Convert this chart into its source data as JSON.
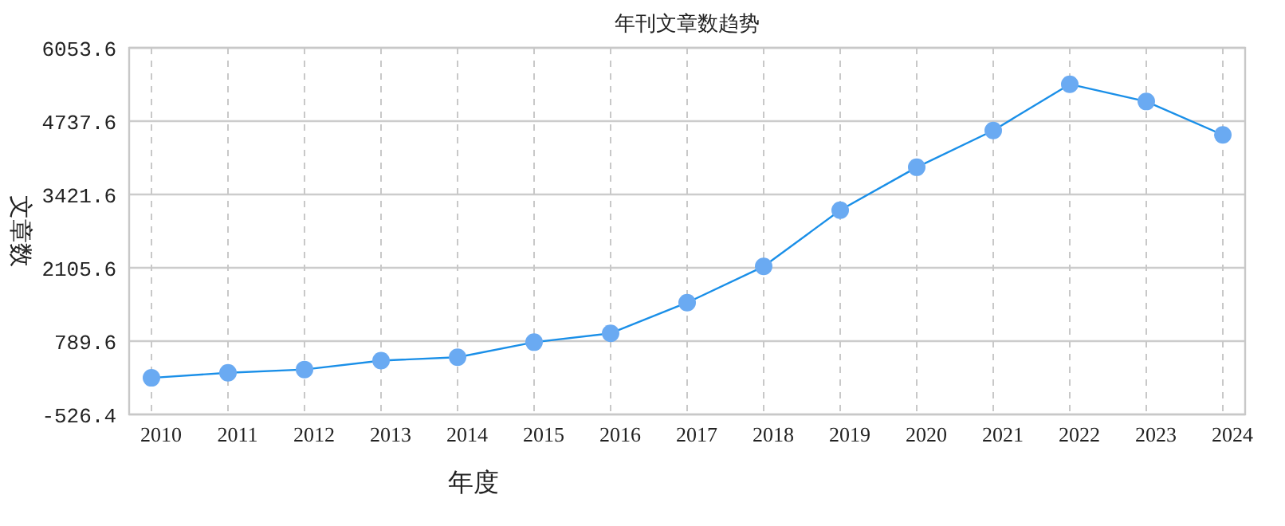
{
  "chart_data": {
    "type": "line",
    "title": "年刊文章数趋势",
    "xlabel": "年度",
    "ylabel": "文章数",
    "categories": [
      "2010",
      "2011",
      "2012",
      "2013",
      "2014",
      "2015",
      "2016",
      "2017",
      "2018",
      "2019",
      "2020",
      "2021",
      "2022",
      "2023",
      "2024"
    ],
    "series": [
      {
        "color": "#1a8fe8",
        "values": [
          130,
          220,
          280,
          440,
          500,
          770,
          930,
          1480,
          2130,
          3140,
          3910,
          4570,
          5400,
          5090,
          4490
        ]
      }
    ],
    "marker": "circle",
    "ylim": [
      -526.4,
      6053.6
    ],
    "yticks": [
      -526.4,
      789.6,
      2105.6,
      3421.6,
      4737.6,
      6053.6
    ],
    "grid": true
  }
}
